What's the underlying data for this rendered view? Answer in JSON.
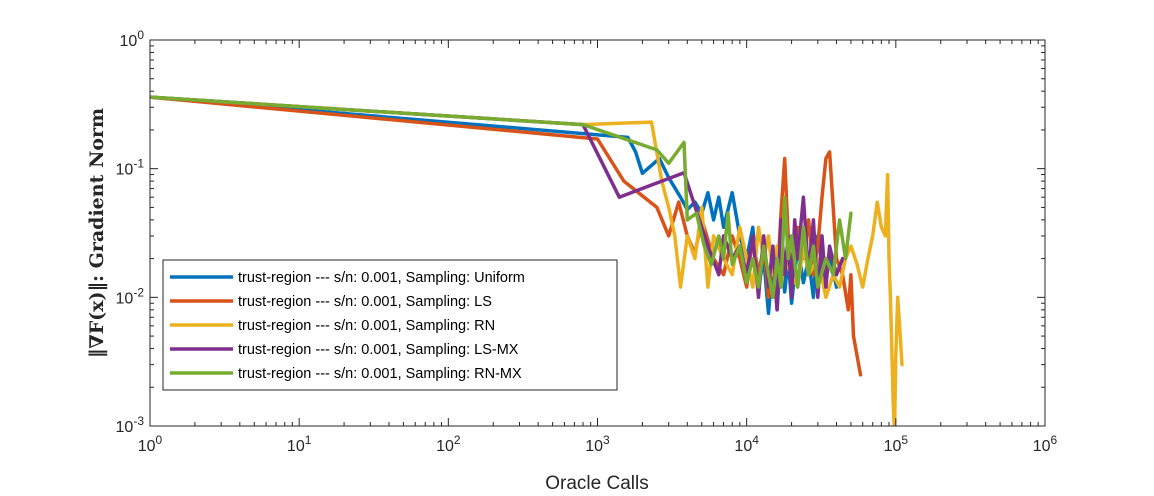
{
  "chart_data": {
    "type": "line",
    "xscale": "log",
    "yscale": "log",
    "xlim": [
      1,
      1000000
    ],
    "ylim": [
      0.001,
      1
    ],
    "xlabel": "Oracle Calls",
    "ylabel": "‖∇F(x)‖: Gradient Norm",
    "grid": false,
    "legend_position": "bottom-left",
    "x_ticks": [
      {
        "base": "10",
        "exp": "0",
        "value": 1
      },
      {
        "base": "10",
        "exp": "1",
        "value": 10
      },
      {
        "base": "10",
        "exp": "2",
        "value": 100
      },
      {
        "base": "10",
        "exp": "3",
        "value": 1000
      },
      {
        "base": "10",
        "exp": "4",
        "value": 10000
      },
      {
        "base": "10",
        "exp": "5",
        "value": 100000
      },
      {
        "base": "10",
        "exp": "6",
        "value": 1000000
      }
    ],
    "y_ticks": [
      {
        "base": "10",
        "exp": "0",
        "value": 1
      },
      {
        "base": "10",
        "exp": "-1",
        "value": 0.1
      },
      {
        "base": "10",
        "exp": "-2",
        "value": 0.01
      },
      {
        "base": "10",
        "exp": "-3",
        "value": 0.001
      }
    ],
    "series": [
      {
        "name": "trust-region --- s/n: 0.001, Sampling: Uniform",
        "color": "#0072BD",
        "points": [
          [
            1,
            0.36
          ],
          [
            1600,
            0.175
          ],
          [
            1800,
            0.135
          ],
          [
            2000,
            0.092
          ],
          [
            2600,
            0.12
          ],
          [
            3000,
            0.085
          ],
          [
            3600,
            0.06
          ],
          [
            4000,
            0.048
          ],
          [
            4500,
            0.055
          ],
          [
            5000,
            0.045
          ],
          [
            5500,
            0.065
          ],
          [
            6000,
            0.04
          ],
          [
            6500,
            0.06
          ],
          [
            7000,
            0.035
          ],
          [
            8000,
            0.065
          ],
          [
            9000,
            0.03
          ],
          [
            10000,
            0.02
          ],
          [
            11000,
            0.035
          ],
          [
            12000,
            0.012
          ],
          [
            13000,
            0.02
          ],
          [
            14000,
            0.0075
          ],
          [
            15000,
            0.02
          ],
          [
            16000,
            0.008
          ],
          [
            17000,
            0.025
          ],
          [
            18000,
            0.011
          ],
          [
            19000,
            0.02
          ],
          [
            20000,
            0.009
          ],
          [
            22000,
            0.025
          ],
          [
            24000,
            0.013
          ],
          [
            26000,
            0.02
          ],
          [
            28000,
            0.01
          ],
          [
            30000,
            0.03
          ],
          [
            33000,
            0.015
          ],
          [
            36000,
            0.022
          ],
          [
            40000,
            0.012
          ]
        ]
      },
      {
        "name": "trust-region --- s/n: 0.001, Sampling: LS",
        "color": "#D95319",
        "points": [
          [
            1,
            0.36
          ],
          [
            1000,
            0.17
          ],
          [
            1500,
            0.08
          ],
          [
            2500,
            0.05
          ],
          [
            3000,
            0.03
          ],
          [
            3500,
            0.055
          ],
          [
            4000,
            0.03
          ],
          [
            4500,
            0.022
          ],
          [
            5000,
            0.04
          ],
          [
            6000,
            0.02
          ],
          [
            7000,
            0.015
          ],
          [
            8000,
            0.03
          ],
          [
            9000,
            0.02
          ],
          [
            10000,
            0.012
          ],
          [
            11000,
            0.03
          ],
          [
            12000,
            0.015
          ],
          [
            13000,
            0.025
          ],
          [
            14000,
            0.01
          ],
          [
            15000,
            0.02
          ],
          [
            16000,
            0.013
          ],
          [
            17000,
            0.045
          ],
          [
            18000,
            0.12
          ],
          [
            19000,
            0.03
          ],
          [
            20000,
            0.015
          ],
          [
            22000,
            0.035
          ],
          [
            24000,
            0.02
          ],
          [
            26000,
            0.04
          ],
          [
            28000,
            0.015
          ],
          [
            30000,
            0.025
          ],
          [
            32000,
            0.06
          ],
          [
            34000,
            0.12
          ],
          [
            36000,
            0.135
          ],
          [
            38000,
            0.05
          ],
          [
            40000,
            0.02
          ],
          [
            44000,
            0.015
          ],
          [
            48000,
            0.008
          ],
          [
            50000,
            0.015
          ],
          [
            52000,
            0.005
          ],
          [
            55000,
            0.0035
          ],
          [
            58000,
            0.0025
          ]
        ]
      },
      {
        "name": "trust-region --- s/n: 0.001, Sampling: RN",
        "color": "#EDB120",
        "points": [
          [
            1,
            0.36
          ],
          [
            800,
            0.22
          ],
          [
            2300,
            0.23
          ],
          [
            2700,
            0.08
          ],
          [
            3000,
            0.05
          ],
          [
            3300,
            0.03
          ],
          [
            3600,
            0.012
          ],
          [
            4000,
            0.03
          ],
          [
            4500,
            0.02
          ],
          [
            5000,
            0.05
          ],
          [
            5500,
            0.012
          ],
          [
            6000,
            0.03
          ],
          [
            7000,
            0.02
          ],
          [
            8000,
            0.015
          ],
          [
            9000,
            0.035
          ],
          [
            10000,
            0.02
          ],
          [
            11000,
            0.012
          ],
          [
            12000,
            0.035
          ],
          [
            13000,
            0.02
          ],
          [
            14000,
            0.03
          ],
          [
            15000,
            0.015
          ],
          [
            16000,
            0.025
          ],
          [
            17000,
            0.012
          ],
          [
            18000,
            0.02
          ],
          [
            20000,
            0.015
          ],
          [
            22000,
            0.012
          ],
          [
            24000,
            0.025
          ],
          [
            26000,
            0.015
          ],
          [
            30000,
            0.02
          ],
          [
            34000,
            0.01
          ],
          [
            38000,
            0.015
          ],
          [
            42000,
            0.012
          ],
          [
            46000,
            0.02
          ],
          [
            50000,
            0.025
          ],
          [
            55000,
            0.018
          ],
          [
            60000,
            0.012
          ],
          [
            65000,
            0.02
          ],
          [
            70000,
            0.03
          ],
          [
            75000,
            0.055
          ],
          [
            80000,
            0.035
          ],
          [
            85000,
            0.03
          ],
          [
            88000,
            0.09
          ],
          [
            90000,
            0.02
          ],
          [
            92000,
            0.01
          ],
          [
            94000,
            0.004
          ],
          [
            96000,
            0.0015
          ],
          [
            98000,
            0.0009
          ],
          [
            100000,
            0.0035
          ],
          [
            103000,
            0.01
          ],
          [
            106000,
            0.006
          ],
          [
            110000,
            0.003
          ]
        ]
      },
      {
        "name": "trust-region --- s/n: 0.001, Sampling: LS-MX",
        "color": "#7E2F8E",
        "points": [
          [
            1,
            0.36
          ],
          [
            800,
            0.22
          ],
          [
            1400,
            0.06
          ],
          [
            3800,
            0.093
          ],
          [
            5500,
            0.025
          ],
          [
            6500,
            0.015
          ],
          [
            7000,
            0.03
          ],
          [
            8000,
            0.02
          ],
          [
            9000,
            0.025
          ],
          [
            10000,
            0.015
          ],
          [
            11000,
            0.03
          ],
          [
            12000,
            0.01
          ],
          [
            13000,
            0.03
          ],
          [
            14000,
            0.012
          ],
          [
            15000,
            0.025
          ],
          [
            16000,
            0.008
          ],
          [
            17000,
            0.04
          ],
          [
            18000,
            0.015
          ],
          [
            19000,
            0.03
          ],
          [
            20000,
            0.01
          ],
          [
            21000,
            0.04
          ],
          [
            22000,
            0.02
          ],
          [
            24000,
            0.06
          ],
          [
            26000,
            0.015
          ],
          [
            28000,
            0.04
          ],
          [
            30000,
            0.01
          ],
          [
            32000,
            0.03
          ],
          [
            34000,
            0.012
          ],
          [
            36000,
            0.025
          ],
          [
            40000,
            0.015
          ],
          [
            44000,
            0.02
          ]
        ]
      },
      {
        "name": "trust-region --- s/n: 0.001, Sampling: RN-MX",
        "color": "#77AC30",
        "points": [
          [
            1,
            0.36
          ],
          [
            800,
            0.22
          ],
          [
            2500,
            0.14
          ],
          [
            3000,
            0.11
          ],
          [
            3800,
            0.16
          ],
          [
            4000,
            0.04
          ],
          [
            4600,
            0.045
          ],
          [
            5200,
            0.025
          ],
          [
            5800,
            0.018
          ],
          [
            6500,
            0.03
          ],
          [
            7000,
            0.02
          ],
          [
            7500,
            0.045
          ],
          [
            8000,
            0.018
          ],
          [
            9000,
            0.025
          ],
          [
            10000,
            0.013
          ],
          [
            11000,
            0.02
          ],
          [
            12000,
            0.012
          ],
          [
            13000,
            0.025
          ],
          [
            14000,
            0.015
          ],
          [
            15000,
            0.01
          ],
          [
            16000,
            0.02
          ],
          [
            17000,
            0.012
          ],
          [
            18000,
            0.06
          ],
          [
            19000,
            0.02
          ],
          [
            20000,
            0.03
          ],
          [
            22000,
            0.012
          ],
          [
            24000,
            0.035
          ],
          [
            26000,
            0.015
          ],
          [
            28000,
            0.025
          ],
          [
            30000,
            0.012
          ],
          [
            34000,
            0.02
          ],
          [
            38000,
            0.015
          ],
          [
            42000,
            0.04
          ],
          [
            46000,
            0.02
          ],
          [
            50000,
            0.045
          ]
        ]
      }
    ]
  }
}
